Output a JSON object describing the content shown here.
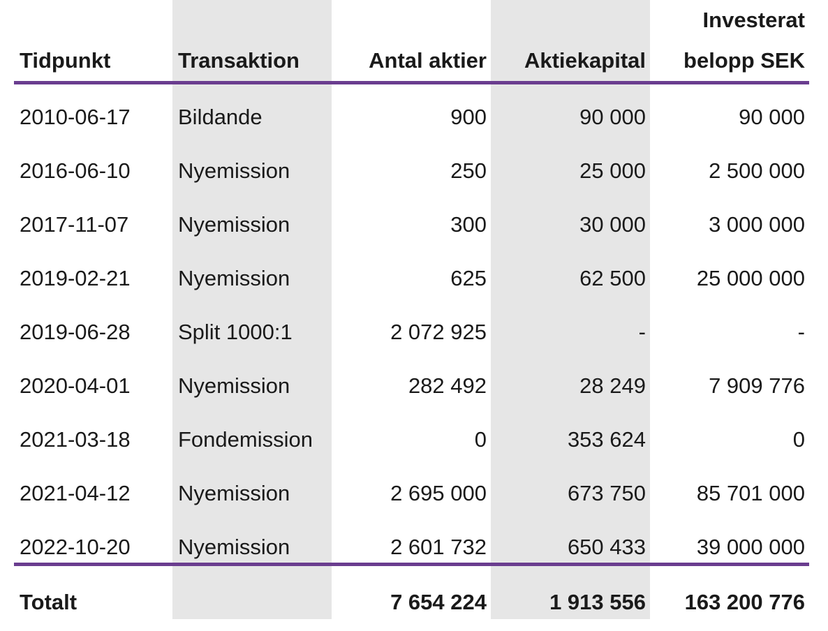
{
  "table": {
    "headers": {
      "date": "Tidpunkt",
      "transaction": "Transaktion",
      "shares": "Antal aktier",
      "share_capital": "Aktiekapital",
      "invested_line1": "Investerat",
      "invested_line2": "belopp SEK"
    },
    "rows": [
      {
        "date": "2010-06-17",
        "transaction": "Bildande",
        "shares": "900",
        "share_capital": "90 000",
        "invested": "90 000"
      },
      {
        "date": "2016-06-10",
        "transaction": "Nyemission",
        "shares": "250",
        "share_capital": "25 000",
        "invested": "2 500 000"
      },
      {
        "date": "2017-11-07",
        "transaction": "Nyemission",
        "shares": "300",
        "share_capital": "30 000",
        "invested": "3 000 000"
      },
      {
        "date": "2019-02-21",
        "transaction": "Nyemission",
        "shares": "625",
        "share_capital": "62 500",
        "invested": "25 000 000"
      },
      {
        "date": "2019-06-28",
        "transaction": "Split 1000:1",
        "shares": "2 072 925",
        "share_capital": "-",
        "invested": "-"
      },
      {
        "date": "2020-04-01",
        "transaction": "Nyemission",
        "shares": "282 492",
        "share_capital": "28 249",
        "invested": "7 909 776"
      },
      {
        "date": "2021-03-18",
        "transaction": "Fondemission",
        "shares": "0",
        "share_capital": "353 624",
        "invested": "0"
      },
      {
        "date": "2021-04-12",
        "transaction": "Nyemission",
        "shares": "2 695 000",
        "share_capital": "673 750",
        "invested": "85 701 000"
      },
      {
        "date": "2022-10-20",
        "transaction": "Nyemission",
        "shares": "2 601 732",
        "share_capital": "650 433",
        "invested": "39 000 000"
      }
    ],
    "total": {
      "label": "Totalt",
      "shares": "7 654 224",
      "share_capital": "1 913 556",
      "invested": "163 200 776"
    }
  },
  "colors": {
    "rule": "#6a3d8f",
    "shade": "#e6e6e6",
    "text": "#1a1a1a"
  }
}
